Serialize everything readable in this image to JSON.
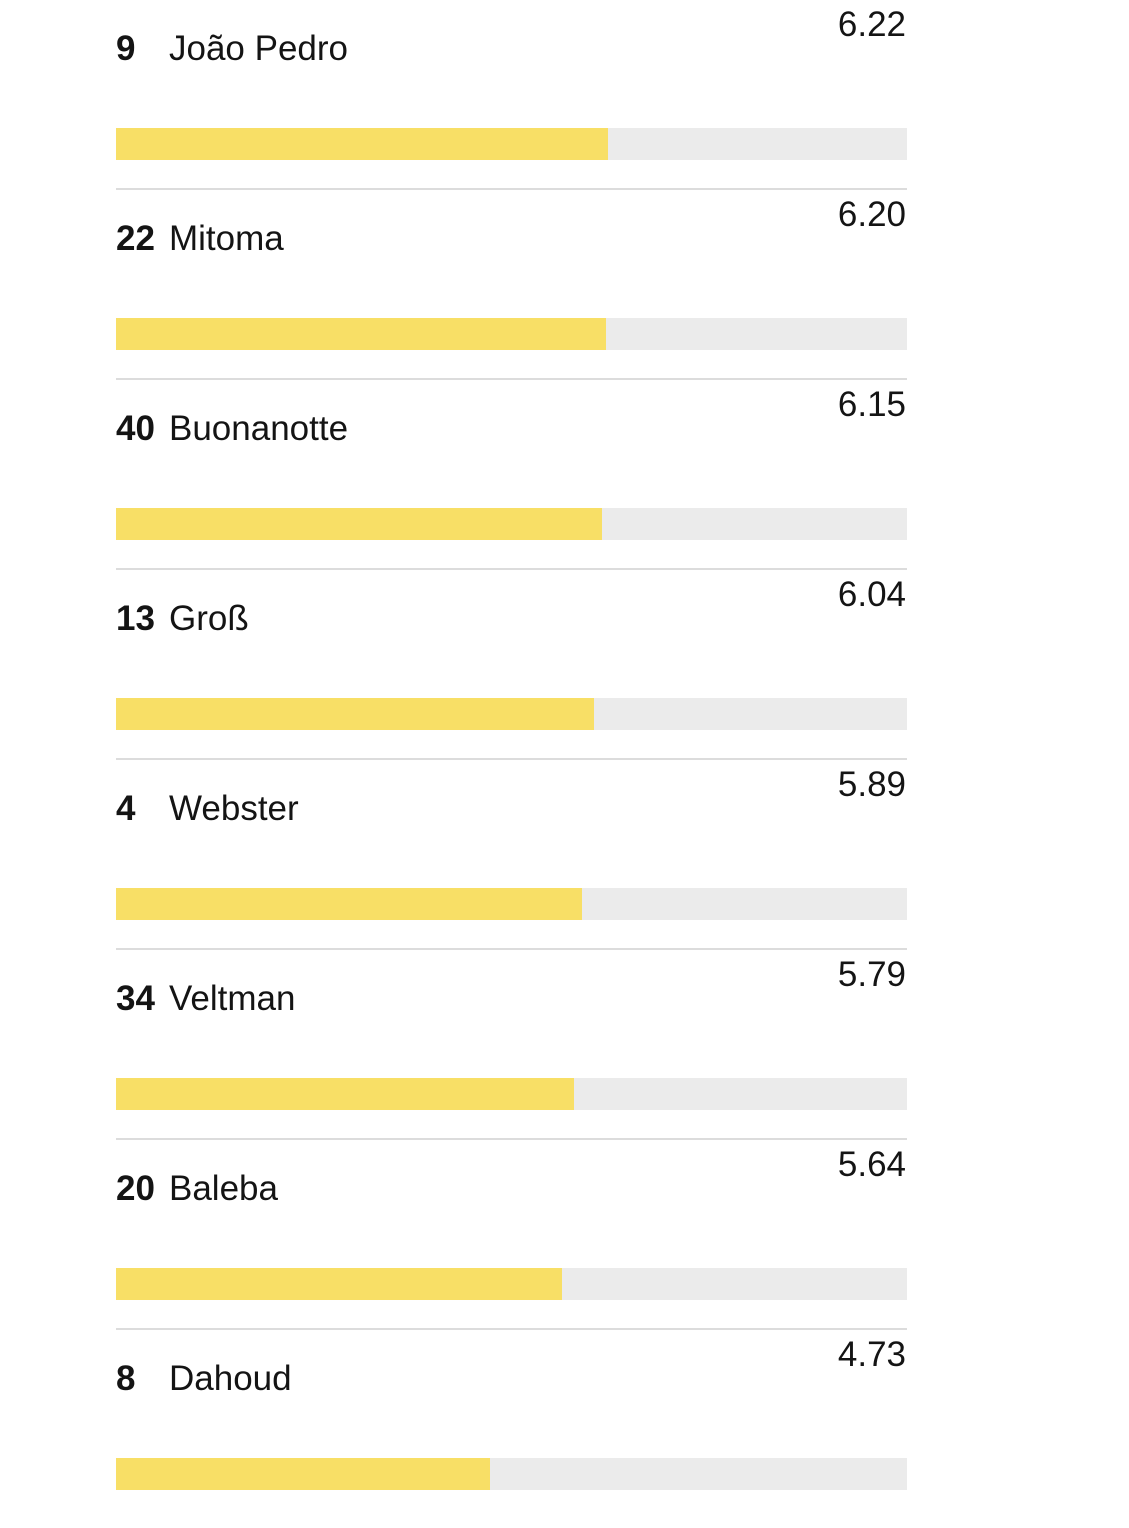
{
  "players": [
    {
      "number": "9",
      "name": "João Pedro",
      "rating": "6.22",
      "fill": 0.622
    },
    {
      "number": "22",
      "name": "Mitoma",
      "rating": "6.20",
      "fill": 0.62
    },
    {
      "number": "40",
      "name": "Buonanotte",
      "rating": "6.15",
      "fill": 0.615
    },
    {
      "number": "13",
      "name": "Groß",
      "rating": "6.04",
      "fill": 0.604
    },
    {
      "number": "4",
      "name": "Webster",
      "rating": "5.89",
      "fill": 0.589
    },
    {
      "number": "34",
      "name": "Veltman",
      "rating": "5.79",
      "fill": 0.579
    },
    {
      "number": "20",
      "name": "Baleba",
      "rating": "5.64",
      "fill": 0.564
    },
    {
      "number": "8",
      "name": "Dahoud",
      "rating": "4.73",
      "fill": 0.473
    }
  ],
  "colors": {
    "bar_fill": "#f8df66",
    "bar_track": "#ebebeb",
    "divider": "#dcdcdc"
  }
}
